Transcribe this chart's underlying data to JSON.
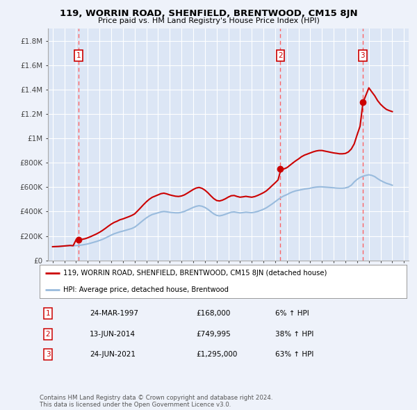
{
  "title": "119, WORRIN ROAD, SHENFIELD, BRENTWOOD, CM15 8JN",
  "subtitle": "Price paid vs. HM Land Registry's House Price Index (HPI)",
  "background_color": "#eef2fa",
  "plot_bg_color": "#dce6f5",
  "grid_color": "#ffffff",
  "ylim": [
    0,
    1900000
  ],
  "yticks": [
    0,
    200000,
    400000,
    600000,
    800000,
    1000000,
    1200000,
    1400000,
    1600000,
    1800000
  ],
  "ytick_labels": [
    "£0",
    "£200K",
    "£400K",
    "£600K",
    "£800K",
    "£1M",
    "£1.2M",
    "£1.4M",
    "£1.6M",
    "£1.8M"
  ],
  "sales": [
    {
      "year": 1997.23,
      "price": 168000,
      "label": "1"
    },
    {
      "year": 2014.45,
      "price": 749995,
      "label": "2"
    },
    {
      "year": 2021.48,
      "price": 1295000,
      "label": "3"
    }
  ],
  "sale_color": "#cc0000",
  "hpi_color": "#99bbdd",
  "red_line_color": "#cc0000",
  "dashed_line_color": "#ff5555",
  "sale_table": [
    {
      "num": "1",
      "date": "24-MAR-1997",
      "price": "£168,000",
      "change": "6% ↑ HPI"
    },
    {
      "num": "2",
      "date": "13-JUN-2014",
      "price": "£749,995",
      "change": "38% ↑ HPI"
    },
    {
      "num": "3",
      "date": "24-JUN-2021",
      "price": "£1,295,000",
      "change": "63% ↑ HPI"
    }
  ],
  "legend_label_red": "119, WORRIN ROAD, SHENFIELD, BRENTWOOD, CM15 8JN (detached house)",
  "legend_label_blue": "HPI: Average price, detached house, Brentwood",
  "footer": "Contains HM Land Registry data © Crown copyright and database right 2024.\nThis data is licensed under the Open Government Licence v3.0.",
  "hpi_data_years": [
    1995.0,
    1995.25,
    1995.5,
    1995.75,
    1996.0,
    1996.25,
    1996.5,
    1996.75,
    1997.0,
    1997.25,
    1997.5,
    1997.75,
    1998.0,
    1998.25,
    1998.5,
    1998.75,
    1999.0,
    1999.25,
    1999.5,
    1999.75,
    2000.0,
    2000.25,
    2000.5,
    2000.75,
    2001.0,
    2001.25,
    2001.5,
    2001.75,
    2002.0,
    2002.25,
    2002.5,
    2002.75,
    2003.0,
    2003.25,
    2003.5,
    2003.75,
    2004.0,
    2004.25,
    2004.5,
    2004.75,
    2005.0,
    2005.25,
    2005.5,
    2005.75,
    2006.0,
    2006.25,
    2006.5,
    2006.75,
    2007.0,
    2007.25,
    2007.5,
    2007.75,
    2008.0,
    2008.25,
    2008.5,
    2008.75,
    2009.0,
    2009.25,
    2009.5,
    2009.75,
    2010.0,
    2010.25,
    2010.5,
    2010.75,
    2011.0,
    2011.25,
    2011.5,
    2011.75,
    2012.0,
    2012.25,
    2012.5,
    2012.75,
    2013.0,
    2013.25,
    2013.5,
    2013.75,
    2014.0,
    2014.25,
    2014.5,
    2014.75,
    2015.0,
    2015.25,
    2015.5,
    2015.75,
    2016.0,
    2016.25,
    2016.5,
    2016.75,
    2017.0,
    2017.25,
    2017.5,
    2017.75,
    2018.0,
    2018.25,
    2018.5,
    2018.75,
    2019.0,
    2019.25,
    2019.5,
    2019.75,
    2020.0,
    2020.25,
    2020.5,
    2020.75,
    2021.0,
    2021.25,
    2021.5,
    2021.75,
    2022.0,
    2022.25,
    2022.5,
    2022.75,
    2023.0,
    2023.25,
    2023.5,
    2023.75,
    2024.0
  ],
  "hpi_values": [
    112000,
    113000,
    114000,
    116000,
    118000,
    120000,
    122000,
    120000,
    121000,
    123000,
    126000,
    130000,
    135000,
    141000,
    148000,
    155000,
    163000,
    172000,
    183000,
    195000,
    207000,
    218000,
    226000,
    234000,
    240000,
    247000,
    254000,
    261000,
    272000,
    290000,
    310000,
    330000,
    348000,
    364000,
    376000,
    383000,
    390000,
    397000,
    401000,
    398000,
    394000,
    392000,
    390000,
    390000,
    394000,
    401000,
    412000,
    423000,
    434000,
    443000,
    448000,
    444000,
    434000,
    419000,
    400000,
    382000,
    369000,
    365000,
    370000,
    378000,
    387000,
    395000,
    397000,
    393000,
    389000,
    392000,
    395000,
    393000,
    391000,
    395000,
    401000,
    409000,
    419000,
    431000,
    447000,
    463000,
    481000,
    499000,
    516000,
    529000,
    539000,
    552000,
    562000,
    570000,
    575000,
    580000,
    585000,
    588000,
    592000,
    597000,
    601000,
    603000,
    603000,
    601000,
    599000,
    597000,
    595000,
    593000,
    592000,
    592000,
    594000,
    601000,
    616000,
    643000,
    664000,
    680000,
    690000,
    697000,
    702000,
    697000,
    687000,
    670000,
    655000,
    643000,
    632000,
    625000,
    616000
  ],
  "red_line_values": [
    112000,
    113000,
    114000,
    116000,
    118000,
    120000,
    122000,
    120000,
    168000,
    168000,
    172000,
    177000,
    185000,
    195000,
    206000,
    217000,
    230000,
    245000,
    262000,
    280000,
    297000,
    311000,
    321000,
    333000,
    340000,
    349000,
    358000,
    368000,
    381000,
    405000,
    430000,
    456000,
    480000,
    501000,
    517000,
    527000,
    537000,
    547000,
    551000,
    545000,
    537000,
    531000,
    526000,
    524000,
    528000,
    537000,
    551000,
    566000,
    581000,
    593000,
    598000,
    591000,
    576000,
    555000,
    530000,
    507000,
    491000,
    487000,
    494000,
    505000,
    519000,
    530000,
    532000,
    524000,
    518000,
    521000,
    525000,
    521000,
    518000,
    523000,
    532000,
    543000,
    555000,
    570000,
    591000,
    614000,
    636000,
    660000,
    749995,
    749995,
    760000,
    779000,
    798000,
    816000,
    832000,
    850000,
    863000,
    872000,
    881000,
    890000,
    897000,
    901000,
    901000,
    896000,
    891000,
    886000,
    881000,
    878000,
    874000,
    874000,
    877000,
    889000,
    913000,
    955000,
    1030000,
    1100000,
    1295000,
    1355000,
    1415000,
    1382000,
    1350000,
    1310000,
    1280000,
    1257000,
    1238000,
    1228000,
    1220000
  ]
}
